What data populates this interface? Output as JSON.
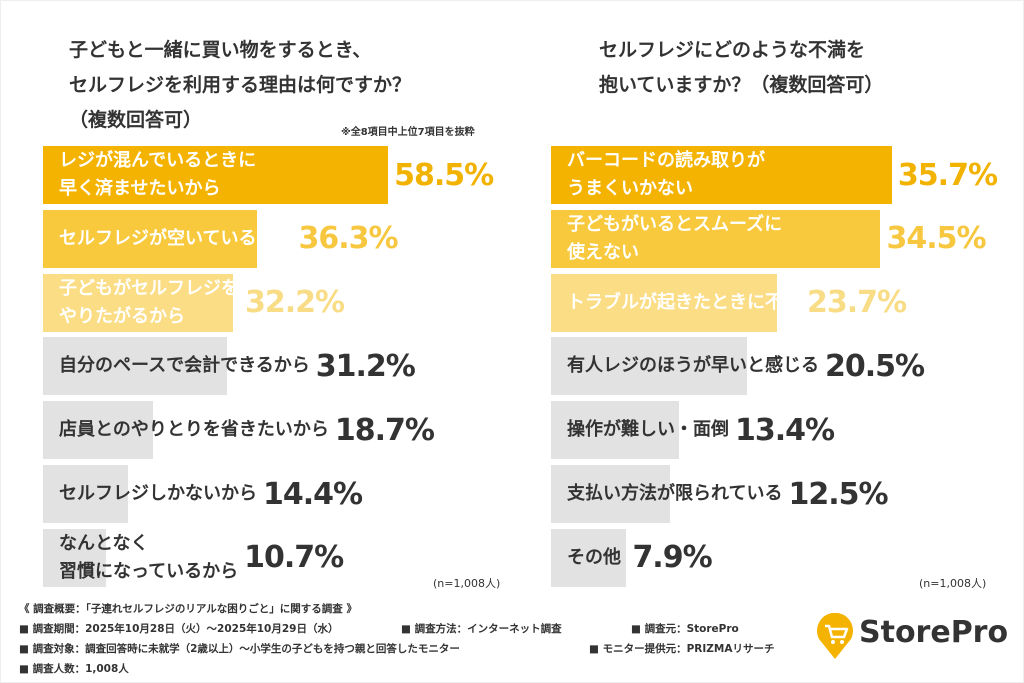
{
  "chart_data": [
    {
      "type": "bar",
      "orientation": "horizontal",
      "title": "子どもと一緒に買い物をするとき、\nセルフレジを利用する理由は何ですか？\n（複数回答可）",
      "note": "※全8項目中上位7項目を抜粋",
      "sample": "(n=1,008人)",
      "categories": [
        "レジが混んでいるときに\n早く済ませたいから",
        "セルフレジが空いているから",
        "子どもがセルフレジを\nやりたがるから",
        "自分のペースで会計できるから",
        "店員とのやりとりを省きたいから",
        "セルフレジしかないから",
        "なんとなく\n習慣になっているから"
      ],
      "values": [
        58.5,
        36.3,
        32.2,
        31.2,
        18.7,
        14.4,
        10.7
      ],
      "value_labels": [
        "58.5%",
        "36.3%",
        "32.2%",
        "31.2%",
        "18.7%",
        "14.4%",
        "10.7%"
      ],
      "colors": [
        "#f5b301",
        "#f8c93c",
        "#fbdd85",
        "#e2e2e2",
        "#e2e2e2",
        "#e2e2e2",
        "#e2e2e2"
      ],
      "text_colors": [
        "#ffffff",
        "#ffffff",
        "#ffffff",
        "#333333",
        "#333333",
        "#333333",
        "#333333"
      ],
      "label_colors": [
        "#f2b200",
        "#f6c73f",
        "#f9dc86",
        "#333333",
        "#333333",
        "#333333",
        "#333333"
      ]
    },
    {
      "type": "bar",
      "orientation": "horizontal",
      "title": "セルフレジにどのような不満を\n抱いていますか？（複数回答可）",
      "sample": "(n=1,008人)",
      "categories": [
        "バーコードの読み取りが\nうまくいかない",
        "子どもがいるとスムーズに\n使えない",
        "トラブルが起きたときに不安",
        "有人レジのほうが早いと感じる",
        "操作が難しい・面倒",
        "支払い方法が限られている",
        "その他"
      ],
      "values": [
        35.7,
        34.5,
        23.7,
        20.5,
        13.4,
        12.5,
        7.9
      ],
      "value_labels": [
        "35.7%",
        "34.5%",
        "23.7%",
        "20.5%",
        "13.4%",
        "12.5%",
        "7.9%"
      ],
      "colors": [
        "#f5b301",
        "#f8c93c",
        "#fbdd85",
        "#e2e2e2",
        "#e2e2e2",
        "#e2e2e2",
        "#e2e2e2"
      ],
      "text_colors": [
        "#ffffff",
        "#ffffff",
        "#ffffff",
        "#333333",
        "#333333",
        "#333333",
        "#333333"
      ],
      "label_colors": [
        "#f2b200",
        "#f6c73f",
        "#f9dc86",
        "#333333",
        "#333333",
        "#333333",
        "#333333"
      ]
    }
  ],
  "footer": {
    "heading": "《 調査概要：「子連れセルフレジのリアルな困りごと」に関する調査 》",
    "period": "■ 調査期間：2025年10月28日（火）～2025年10月29日（水）",
    "method": "■ 調査方法：インターネット調査",
    "source": "■ 調査元：StorePro",
    "target": "■ 調査対象：調査回答時に未就学（2歳以上）～小学生の子どもを持つ親と回答したモニター",
    "provider": "■ モニター提供元：PRIZMAリサーチ",
    "count": "■ 調査人数：1,008人"
  },
  "logo": "StorePro"
}
